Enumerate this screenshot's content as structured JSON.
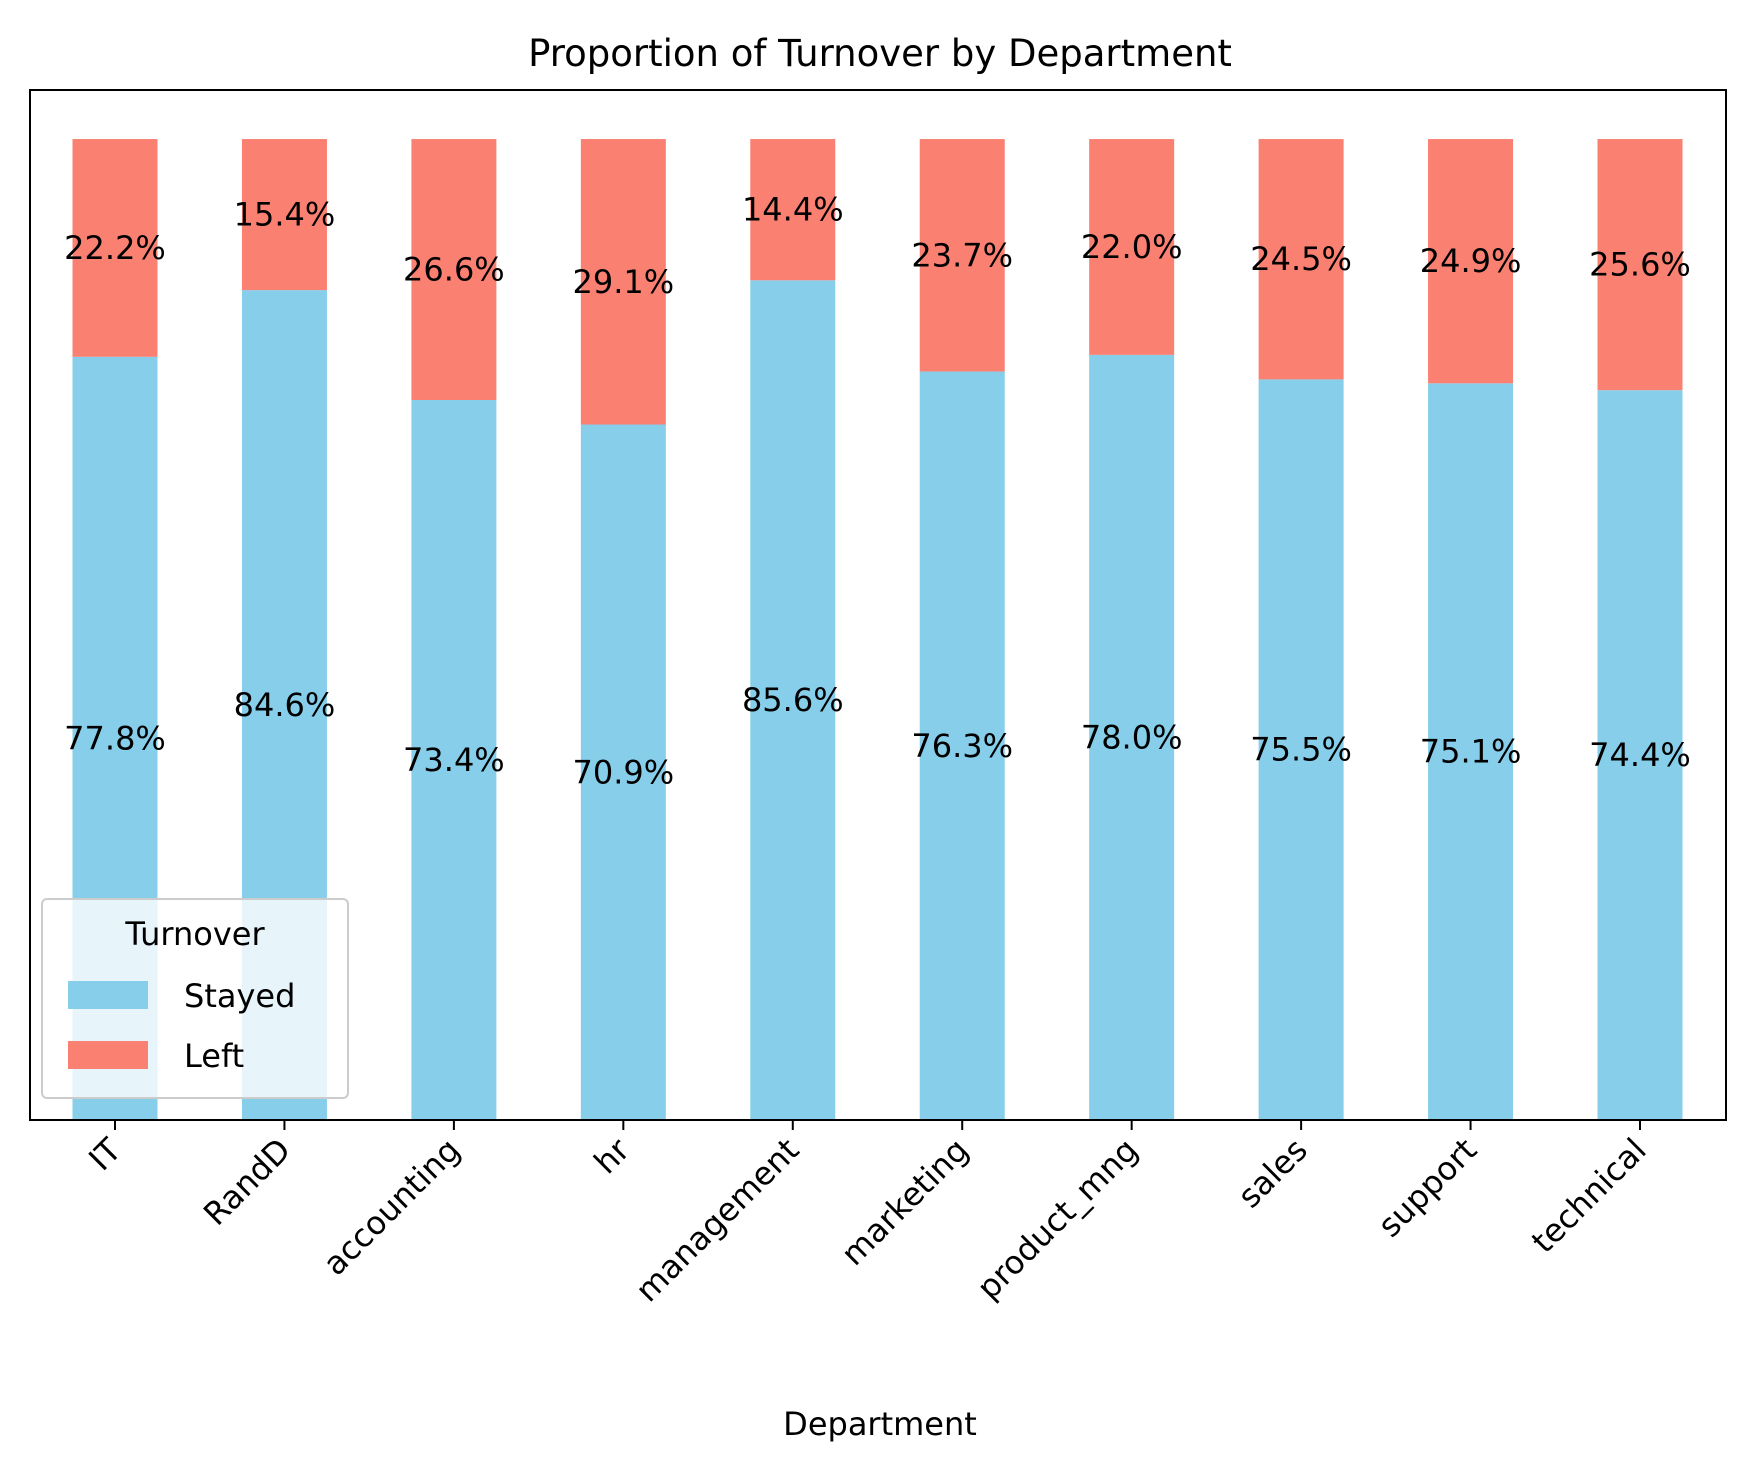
{
  "chart_data": {
    "type": "bar",
    "stacked": true,
    "title": "Proportion of Turnover by Department",
    "xlabel": "Department",
    "ylabel": "",
    "ylim": [
      0,
      1.05
    ],
    "grid": false,
    "categories": [
      "IT",
      "RandD",
      "accounting",
      "hr",
      "management",
      "marketing",
      "product_mng",
      "sales",
      "support",
      "technical"
    ],
    "series": [
      {
        "name": "Stayed",
        "color": "#87CEEB",
        "values": [
          0.778,
          0.846,
          0.734,
          0.709,
          0.856,
          0.763,
          0.78,
          0.755,
          0.751,
          0.744
        ],
        "labels": [
          "77.8%",
          "84.6%",
          "73.4%",
          "70.9%",
          "85.6%",
          "76.3%",
          "78.0%",
          "75.5%",
          "75.1%",
          "74.4%"
        ]
      },
      {
        "name": "Left",
        "color": "#FA8072",
        "values": [
          0.222,
          0.154,
          0.266,
          0.291,
          0.144,
          0.237,
          0.22,
          0.245,
          0.249,
          0.256
        ],
        "labels": [
          "22.2%",
          "15.4%",
          "26.6%",
          "29.1%",
          "14.4%",
          "23.7%",
          "22.0%",
          "24.5%",
          "24.9%",
          "25.6%"
        ]
      }
    ],
    "legend": {
      "title": "Turnover",
      "placement": "lower-left",
      "entries": [
        "Stayed",
        "Left"
      ]
    }
  }
}
